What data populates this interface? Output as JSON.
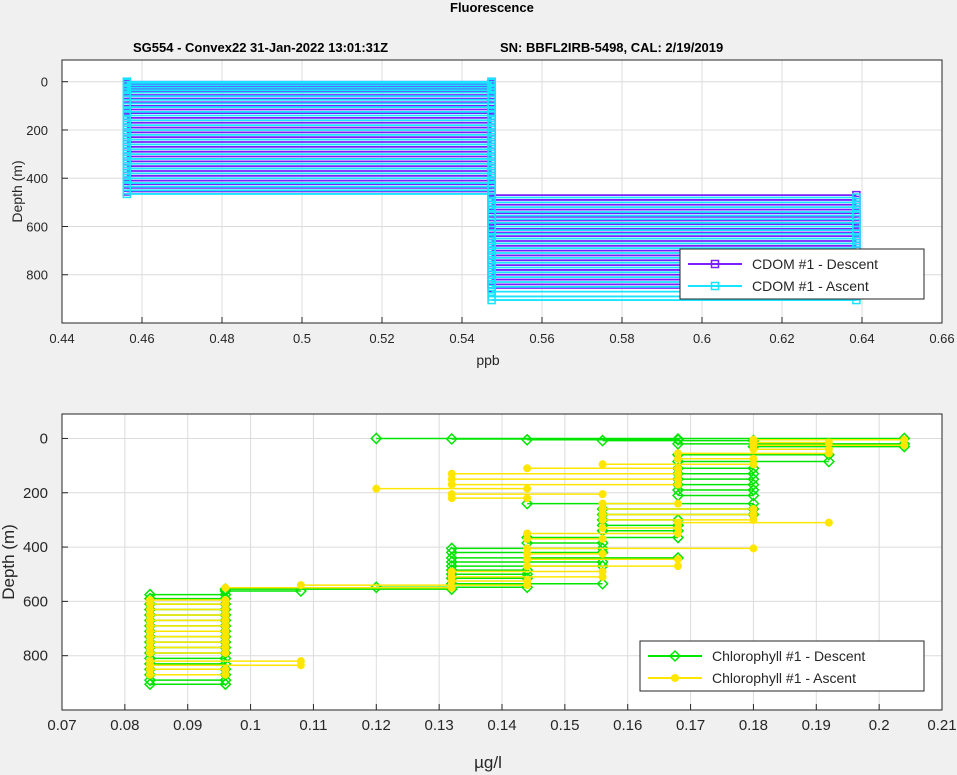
{
  "figure": {
    "suptitle": "Fluorescence",
    "subtitle_left": "SG554 - Convex22 31-Jan-2022 13:01:31Z",
    "subtitle_right": "SN: BBFL2IRB-5498, CAL: 2/19/2019"
  },
  "chart_data": [
    {
      "type": "line",
      "xlabel": "ppb",
      "ylabel": "Depth (m)",
      "xlim": [
        0.44,
        0.66
      ],
      "ylim": [
        -90,
        1000
      ],
      "y_reversed": true,
      "grid": true,
      "xticks": [
        0.44,
        0.46,
        0.48,
        0.5,
        0.52,
        0.54,
        0.56,
        0.58,
        0.6,
        0.62,
        0.64,
        0.66
      ],
      "xtick_labels": [
        "0.44",
        "0.46",
        "0.48",
        "0.5",
        "0.52",
        "0.54",
        "0.56",
        "0.58",
        "0.6",
        "0.62",
        "0.64",
        "0.66"
      ],
      "yticks": [
        0,
        200,
        400,
        600,
        800
      ],
      "ytick_labels": [
        "0",
        "200",
        "400",
        "600",
        "800"
      ],
      "legend_position": "bottom-right",
      "series": [
        {
          "name": "CDOM #1 - Descent",
          "color": "#7a1fff",
          "marker": "square",
          "levels": [
            0.4562,
            0.5474,
            0.6386
          ],
          "depths": [
            0,
            10,
            20,
            30,
            40,
            55,
            70,
            85,
            100,
            115,
            130,
            150,
            170,
            190,
            210,
            230,
            250,
            270,
            290,
            310,
            330,
            350,
            370,
            390,
            410,
            425,
            440,
            455,
            470,
            490,
            510,
            530,
            545,
            560,
            575,
            590,
            610,
            625,
            640,
            660,
            680,
            700,
            720,
            740,
            760,
            780,
            800,
            820,
            840,
            855
          ]
        },
        {
          "name": "CDOM #1 - Ascent",
          "color": "#19e3ff",
          "marker": "square",
          "levels": [
            0.4562,
            0.5474,
            0.6386
          ],
          "depths": [
            0,
            5,
            15,
            25,
            35,
            45,
            60,
            75,
            90,
            105,
            125,
            140,
            160,
            180,
            200,
            220,
            240,
            260,
            280,
            300,
            320,
            340,
            360,
            380,
            400,
            420,
            435,
            450,
            465,
            480,
            500,
            520,
            540,
            555,
            570,
            585,
            600,
            615,
            630,
            650,
            670,
            690,
            710,
            730,
            750,
            770,
            790,
            810,
            830,
            850,
            870,
            890,
            905
          ]
        }
      ]
    },
    {
      "type": "line",
      "xlabel": "µg/l",
      "ylabel": "Depth (m)",
      "xlim": [
        0.07,
        0.21
      ],
      "ylim": [
        -90,
        1000
      ],
      "y_reversed": true,
      "grid": true,
      "xticks": [
        0.07,
        0.08,
        0.09,
        0.1,
        0.11,
        0.12,
        0.13,
        0.14,
        0.15,
        0.16,
        0.17,
        0.18,
        0.19,
        0.2,
        0.21
      ],
      "xtick_labels": [
        "0.07",
        "0.08",
        "0.09",
        "0.1",
        "0.11",
        "0.12",
        "0.13",
        "0.14",
        "0.15",
        "0.16",
        "0.17",
        "0.18",
        "0.19",
        "0.2",
        "0.21"
      ],
      "yticks": [
        0,
        200,
        400,
        600,
        800
      ],
      "ytick_labels": [
        "0",
        "200",
        "400",
        "600",
        "800"
      ],
      "legend_position": "bottom-right",
      "series": [
        {
          "name": "Chlorophyll #1 - Descent",
          "color": "#00e600",
          "marker": "diamond",
          "segments": [
            [
              0.12,
              0.204,
              0
            ],
            [
              0.132,
              0.168,
              2
            ],
            [
              0.144,
              0.168,
              5
            ],
            [
              0.156,
              0.18,
              8
            ],
            [
              0.168,
              0.204,
              20
            ],
            [
              0.18,
              0.204,
              30
            ],
            [
              0.168,
              0.192,
              60
            ],
            [
              0.168,
              0.192,
              85
            ],
            [
              0.168,
              0.18,
              110
            ],
            [
              0.168,
              0.18,
              130
            ],
            [
              0.168,
              0.18,
              150
            ],
            [
              0.168,
              0.18,
              170
            ],
            [
              0.168,
              0.18,
              190
            ],
            [
              0.168,
              0.18,
              210
            ],
            [
              0.144,
              0.18,
              240
            ],
            [
              0.156,
              0.18,
              260
            ],
            [
              0.156,
              0.18,
              280
            ],
            [
              0.156,
              0.168,
              300
            ],
            [
              0.156,
              0.168,
              320
            ],
            [
              0.156,
              0.168,
              340
            ],
            [
              0.144,
              0.168,
              365
            ],
            [
              0.144,
              0.156,
              385
            ],
            [
              0.132,
              0.156,
              405
            ],
            [
              0.132,
              0.156,
              420
            ],
            [
              0.132,
              0.168,
              440
            ],
            [
              0.132,
              0.156,
              455
            ],
            [
              0.132,
              0.156,
              470
            ],
            [
              0.132,
              0.144,
              485
            ],
            [
              0.132,
              0.144,
              500
            ],
            [
              0.132,
              0.144,
              515
            ],
            [
              0.132,
              0.156,
              535
            ],
            [
              0.12,
              0.144,
              548
            ],
            [
              0.096,
              0.132,
              555
            ],
            [
              0.096,
              0.108,
              562
            ],
            [
              0.084,
              0.096,
              575
            ],
            [
              0.084,
              0.096,
              590
            ],
            [
              0.084,
              0.096,
              610
            ],
            [
              0.084,
              0.096,
              630
            ],
            [
              0.084,
              0.096,
              650
            ],
            [
              0.084,
              0.096,
              670
            ],
            [
              0.084,
              0.096,
              690
            ],
            [
              0.084,
              0.096,
              710
            ],
            [
              0.084,
              0.096,
              730
            ],
            [
              0.084,
              0.096,
              750
            ],
            [
              0.084,
              0.096,
              770
            ],
            [
              0.084,
              0.096,
              790
            ],
            [
              0.084,
              0.096,
              810
            ],
            [
              0.084,
              0.096,
              830
            ],
            [
              0.084,
              0.096,
              850
            ],
            [
              0.084,
              0.096,
              870
            ],
            [
              0.084,
              0.096,
              890
            ],
            [
              0.084,
              0.096,
              905
            ]
          ]
        },
        {
          "name": "Chlorophyll #1 - Ascent",
          "color": "#ffe600",
          "marker": "circle",
          "segments": [
            [
              0.18,
              0.204,
              5
            ],
            [
              0.18,
              0.192,
              15
            ],
            [
              0.18,
              0.204,
              25
            ],
            [
              0.18,
              0.192,
              40
            ],
            [
              0.168,
              0.192,
              55
            ],
            [
              0.168,
              0.18,
              75
            ],
            [
              0.156,
              0.18,
              95
            ],
            [
              0.144,
              0.168,
              110
            ],
            [
              0.132,
              0.168,
              130
            ],
            [
              0.132,
              0.168,
              150
            ],
            [
              0.132,
              0.168,
              170
            ],
            [
              0.12,
              0.144,
              185
            ],
            [
              0.132,
              0.156,
              205
            ],
            [
              0.132,
              0.144,
              220
            ],
            [
              0.156,
              0.168,
              240
            ],
            [
              0.156,
              0.18,
              260
            ],
            [
              0.156,
              0.18,
              280
            ],
            [
              0.156,
              0.18,
              300
            ],
            [
              0.168,
              0.192,
              310
            ],
            [
              0.156,
              0.168,
              330
            ],
            [
              0.144,
              0.168,
              350
            ],
            [
              0.144,
              0.156,
              370
            ],
            [
              0.144,
              0.18,
              405
            ],
            [
              0.144,
              0.156,
              425
            ],
            [
              0.144,
              0.168,
              445
            ],
            [
              0.144,
              0.168,
              470
            ],
            [
              0.132,
              0.156,
              490
            ],
            [
              0.132,
              0.156,
              510
            ],
            [
              0.132,
              0.144,
              525
            ],
            [
              0.108,
              0.144,
              540
            ],
            [
              0.096,
              0.132,
              550
            ],
            [
              0.084,
              0.096,
              595
            ],
            [
              0.084,
              0.096,
              610
            ],
            [
              0.084,
              0.096,
              630
            ],
            [
              0.084,
              0.096,
              650
            ],
            [
              0.084,
              0.096,
              670
            ],
            [
              0.084,
              0.096,
              690
            ],
            [
              0.084,
              0.096,
              710
            ],
            [
              0.084,
              0.096,
              730
            ],
            [
              0.084,
              0.096,
              750
            ],
            [
              0.084,
              0.096,
              770
            ],
            [
              0.084,
              0.096,
              790
            ],
            [
              0.084,
              0.108,
              820
            ],
            [
              0.084,
              0.108,
              835
            ],
            [
              0.084,
              0.096,
              850
            ],
            [
              0.084,
              0.096,
              870
            ]
          ]
        }
      ]
    }
  ]
}
